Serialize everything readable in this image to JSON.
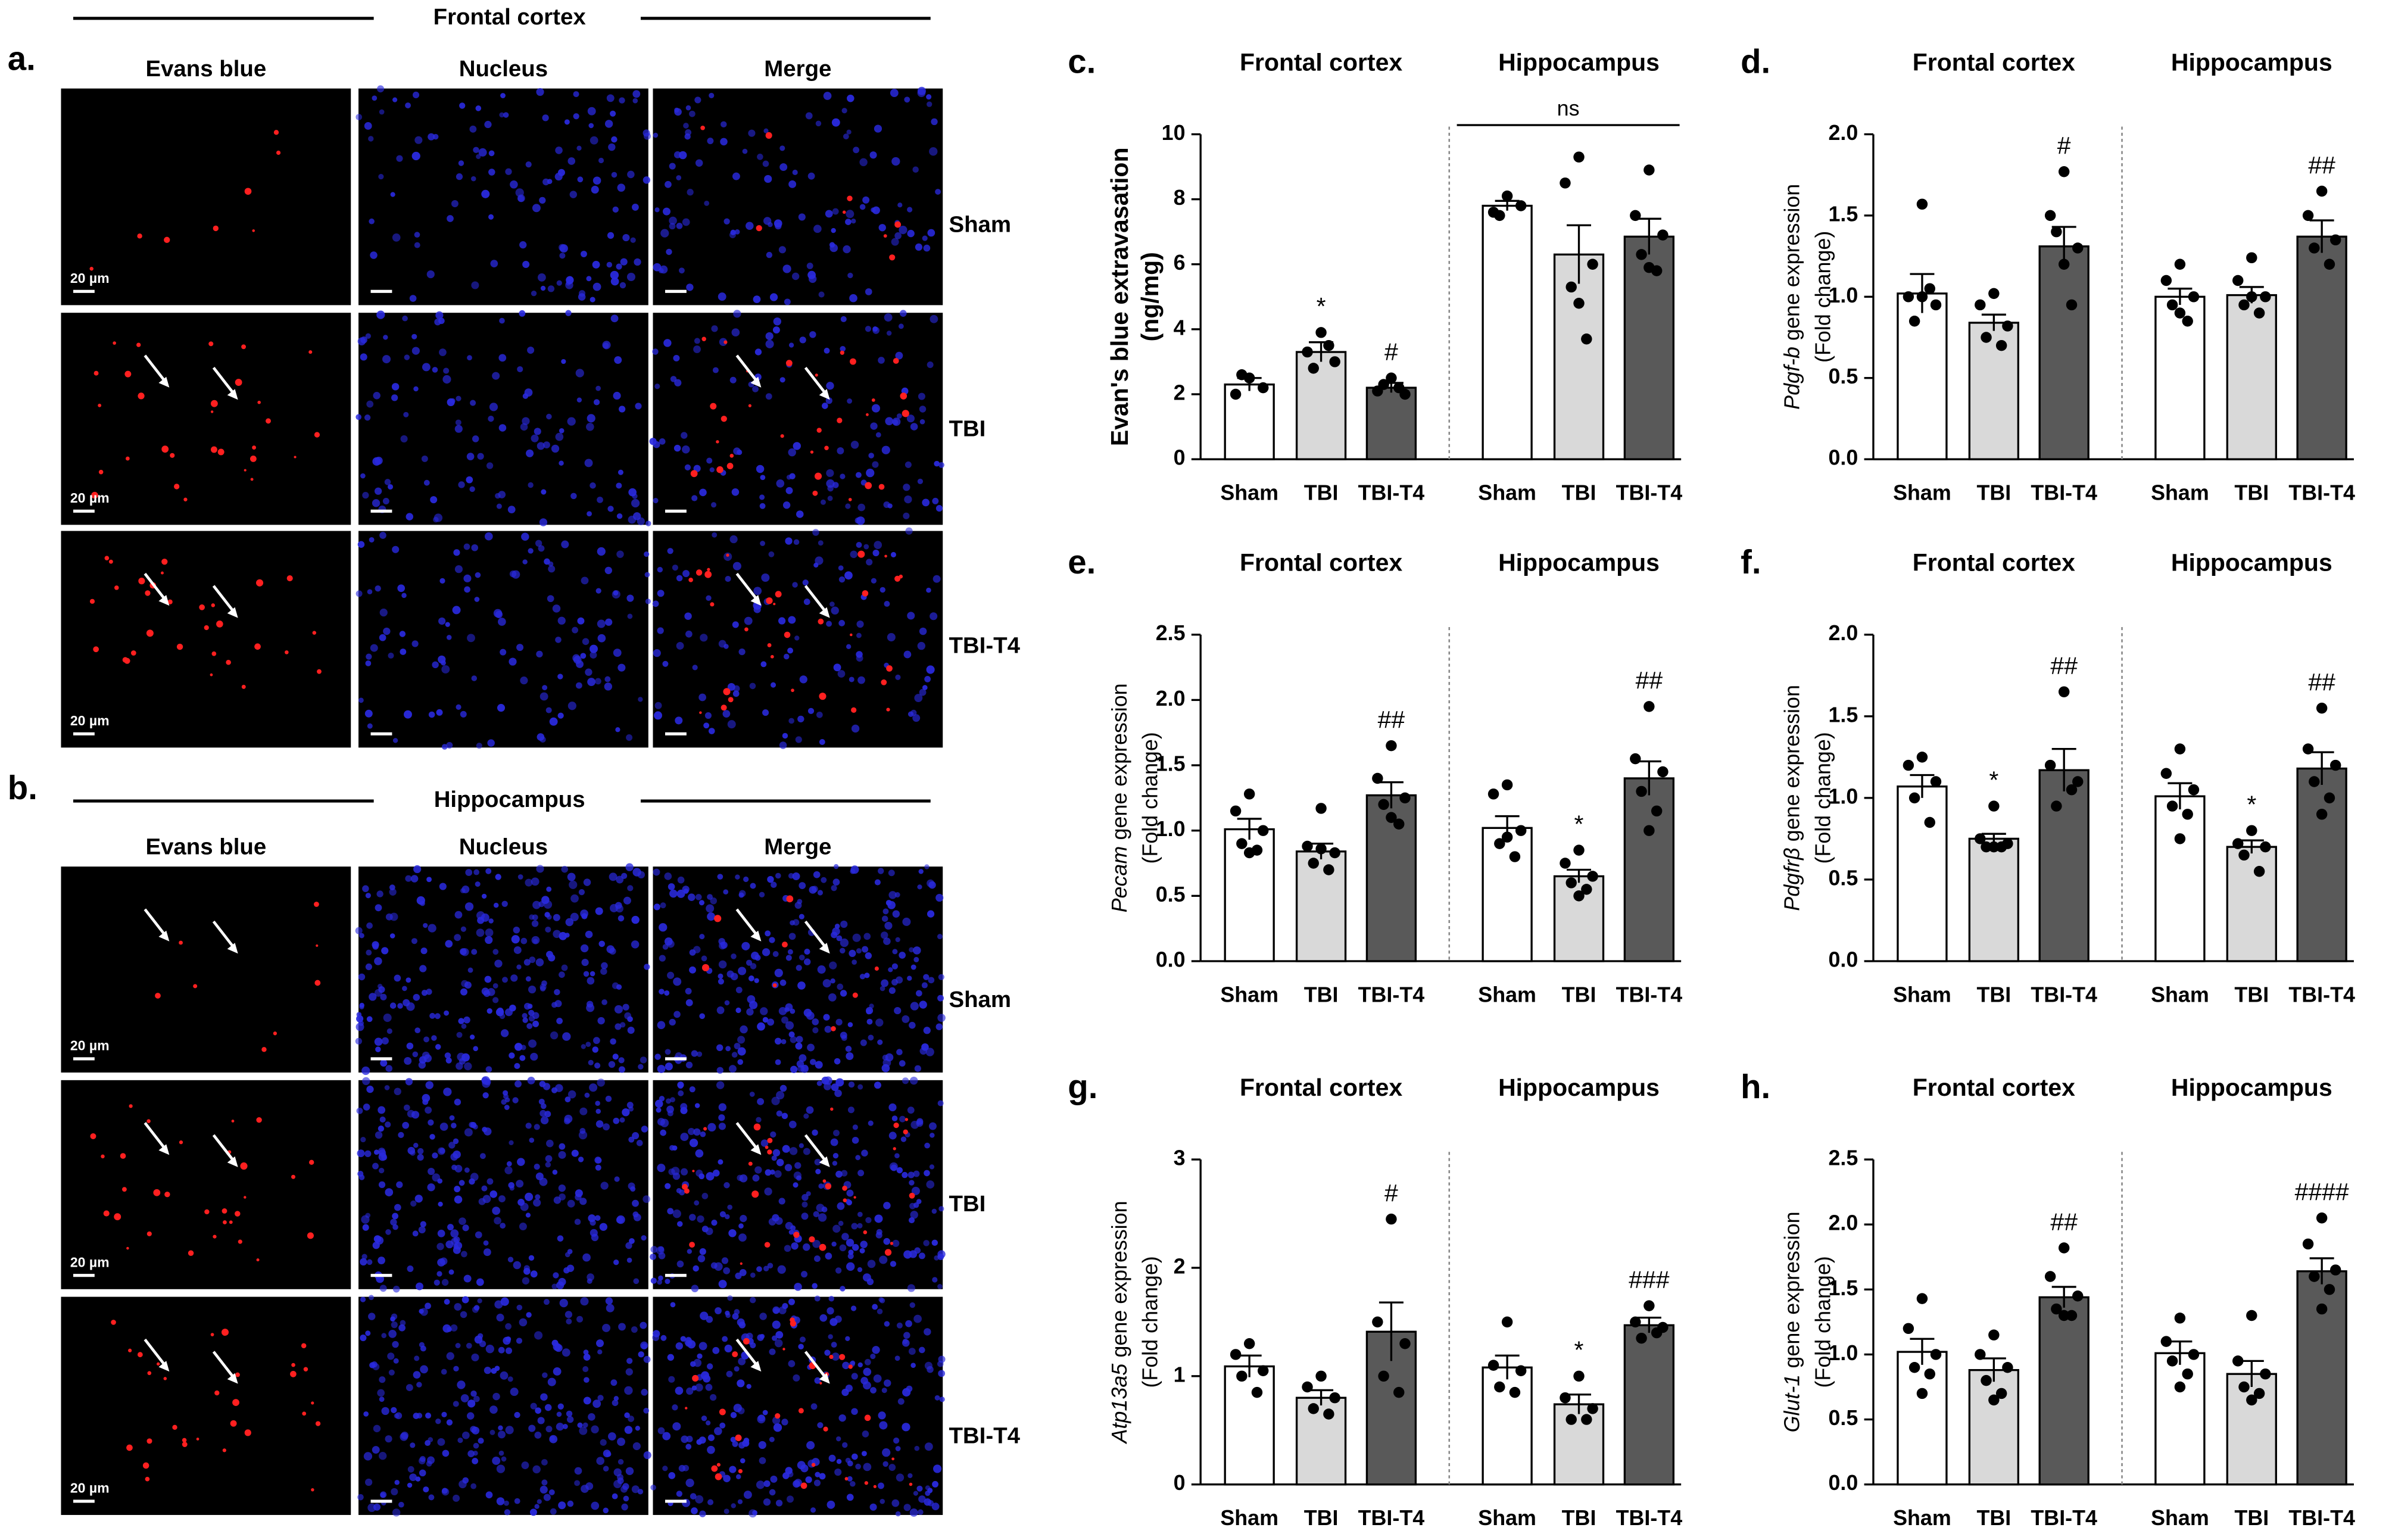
{
  "micrographs": [
    {
      "label": "a.",
      "region": "Frontal cortex",
      "columns": [
        "Evans blue",
        "Nucleus",
        "Merge"
      ],
      "rows": [
        "Sham",
        "TBI",
        "TBI-T4"
      ],
      "scale_bar": "20 µm"
    },
    {
      "label": "b.",
      "region": "Hippocampus",
      "columns": [
        "Evans blue",
        "Nucleus",
        "Merge"
      ],
      "rows": [
        "Sham",
        "TBI",
        "TBI-T4"
      ],
      "scale_bar": "20 µm"
    }
  ],
  "chart_data": [
    {
      "type": "bar",
      "panel_label": "c.",
      "ylabel": "Evan's blue extravasation",
      "ylabel_unit": "(ng/mg)",
      "ylabel_bold": true,
      "groups": [
        "Frontal cortex",
        "Hippocampus"
      ],
      "group_notes": [
        null,
        "ns"
      ],
      "categories": [
        "Sham",
        "TBI",
        "TBI-T4",
        "Sham",
        "TBI",
        "TBI-T4"
      ],
      "values": [
        2.3,
        3.3,
        2.2,
        7.8,
        6.3,
        6.85
      ],
      "errors": [
        0.2,
        0.3,
        0.15,
        0.15,
        0.9,
        0.55
      ],
      "points": [
        [
          2.5,
          2.0,
          2.2,
          2.6
        ],
        [
          3.9,
          3.3,
          3.0,
          2.8,
          3.5
        ],
        [
          2.5,
          2.1,
          2.0,
          2.3,
          2.2
        ],
        [
          8.1,
          7.6,
          7.8,
          7.5
        ],
        [
          9.3,
          8.5,
          6.0,
          5.3,
          3.7,
          4.8
        ],
        [
          8.9,
          7.5,
          6.9,
          6.3,
          5.8,
          5.9
        ]
      ],
      "annotations": [
        null,
        "*",
        "#",
        null,
        null,
        null
      ],
      "colors": [
        "#ffffff",
        "#d9d9d9",
        "#595959"
      ],
      "ylim": [
        0,
        10
      ],
      "yticks": [
        0,
        2,
        4,
        6,
        8,
        10
      ]
    },
    {
      "type": "bar",
      "panel_label": "d.",
      "ylabel_italic": "Pdgf-b",
      "ylabel": "gene expression",
      "ylabel_unit": "(Fold change)",
      "groups": [
        "Frontal cortex",
        "Hippocampus"
      ],
      "categories": [
        "Sham",
        "TBI",
        "TBI-T4",
        "Sham",
        "TBI",
        "TBI-T4"
      ],
      "values": [
        1.02,
        0.84,
        1.31,
        1.0,
        1.01,
        1.37
      ],
      "errors": [
        0.12,
        0.05,
        0.12,
        0.05,
        0.05,
        0.1
      ],
      "points": [
        [
          1.57,
          1.0,
          0.95,
          0.85,
          1.05,
          1.0
        ],
        [
          1.02,
          0.95,
          0.82,
          0.75,
          0.7
        ],
        [
          1.77,
          1.5,
          1.3,
          1.4,
          0.95,
          1.2
        ],
        [
          1.2,
          1.1,
          1.0,
          0.95,
          0.85,
          0.9
        ],
        [
          1.24,
          1.1,
          1.0,
          0.95,
          0.9,
          1.0
        ],
        [
          1.65,
          1.5,
          1.35,
          1.3,
          1.2
        ]
      ],
      "annotations": [
        null,
        null,
        "#",
        null,
        null,
        "##"
      ],
      "colors": [
        "#ffffff",
        "#d9d9d9",
        "#595959"
      ],
      "ylim": [
        0,
        2
      ],
      "yticks": [
        {
          "value": 0,
          "label": "0.0"
        },
        {
          "value": 0.5,
          "label": "0.5"
        },
        {
          "value": 1,
          "label": "1.0"
        },
        {
          "value": 1.5,
          "label": "1.5"
        },
        {
          "value": 2,
          "label": "2.0"
        }
      ]
    },
    {
      "type": "bar",
      "panel_label": "e.",
      "ylabel_italic": "Pecam",
      "ylabel": "gene expression",
      "ylabel_unit": "(Fold change)",
      "groups": [
        "Frontal cortex",
        "Hippocampus"
      ],
      "categories": [
        "Sham",
        "TBI",
        "TBI-T4",
        "Sham",
        "TBI",
        "TBI-T4"
      ],
      "values": [
        1.01,
        0.84,
        1.27,
        1.02,
        0.65,
        1.4
      ],
      "errors": [
        0.08,
        0.06,
        0.1,
        0.09,
        0.05,
        0.13
      ],
      "points": [
        [
          1.28,
          1.15,
          1.0,
          0.9,
          0.85,
          0.83
        ],
        [
          1.17,
          0.88,
          0.83,
          0.75,
          0.7,
          0.86
        ],
        [
          1.65,
          1.4,
          1.25,
          1.2,
          1.05,
          1.1
        ],
        [
          1.35,
          1.28,
          1.0,
          0.9,
          0.8,
          0.95
        ],
        [
          0.85,
          0.75,
          0.65,
          0.6,
          0.55,
          0.5
        ],
        [
          1.95,
          1.55,
          1.45,
          1.3,
          1.15,
          1.0
        ]
      ],
      "annotations": [
        null,
        null,
        "##",
        null,
        "*",
        "##"
      ],
      "colors": [
        "#ffffff",
        "#d9d9d9",
        "#595959"
      ],
      "ylim": [
        0,
        2.5
      ],
      "yticks": [
        {
          "value": 0,
          "label": "0.0"
        },
        {
          "value": 0.5,
          "label": "0.5"
        },
        {
          "value": 1,
          "label": "1.0"
        },
        {
          "value": 1.5,
          "label": "1.5"
        },
        {
          "value": 2,
          "label": "2.0"
        },
        2.5
      ]
    },
    {
      "type": "bar",
      "panel_label": "f.",
      "ylabel_italic": "Pdgfrβ",
      "ylabel": "gene expression",
      "ylabel_unit": "(Fold change)",
      "groups": [
        "Frontal cortex",
        "Hippocampus"
      ],
      "categories": [
        "Sham",
        "TBI",
        "TBI-T4",
        "Sham",
        "TBI",
        "TBI-T4"
      ],
      "values": [
        1.07,
        0.75,
        1.17,
        1.01,
        0.7,
        1.18
      ],
      "errors": [
        0.07,
        0.03,
        0.13,
        0.08,
        0.04,
        0.1
      ],
      "points": [
        [
          1.25,
          1.2,
          1.1,
          1.0,
          0.85
        ],
        [
          0.95,
          0.75,
          0.72,
          0.7,
          0.7,
          0.7
        ],
        [
          1.65,
          1.2,
          1.1,
          0.95,
          1.05
        ],
        [
          1.3,
          1.15,
          1.05,
          0.95,
          0.9,
          0.75
        ],
        [
          0.8,
          0.72,
          0.7,
          0.65,
          0.55
        ],
        [
          1.55,
          1.3,
          1.2,
          1.1,
          1.0,
          0.9
        ]
      ],
      "annotations": [
        null,
        "*",
        "##",
        null,
        "*",
        "##"
      ],
      "colors": [
        "#ffffff",
        "#d9d9d9",
        "#595959"
      ],
      "ylim": [
        0,
        2
      ],
      "yticks": [
        {
          "value": 0,
          "label": "0.0"
        },
        {
          "value": 0.5,
          "label": "0.5"
        },
        {
          "value": 1,
          "label": "1.0"
        },
        {
          "value": 1.5,
          "label": "1.5"
        },
        {
          "value": 2,
          "label": "2.0"
        }
      ]
    },
    {
      "type": "bar",
      "panel_label": "g.",
      "ylabel_italic": "Atp13a5",
      "ylabel": "gene expression",
      "ylabel_unit": "(Fold change)",
      "groups": [
        "Frontal cortex",
        "Hippocampus"
      ],
      "categories": [
        "Sham",
        "TBI",
        "TBI-T4",
        "Sham",
        "TBI",
        "TBI-T4"
      ],
      "values": [
        1.09,
        0.8,
        1.41,
        1.08,
        0.74,
        1.47
      ],
      "errors": [
        0.1,
        0.07,
        0.27,
        0.11,
        0.09,
        0.07
      ],
      "points": [
        [
          1.3,
          1.2,
          1.05,
          1.0,
          0.85
        ],
        [
          1.0,
          0.9,
          0.8,
          0.7,
          0.65
        ],
        [
          2.45,
          1.5,
          1.3,
          1.0,
          0.85
        ],
        [
          1.5,
          1.1,
          1.05,
          0.9,
          0.85
        ],
        [
          1.0,
          0.8,
          0.7,
          0.6,
          0.6
        ],
        [
          1.65,
          1.5,
          1.45,
          1.35,
          1.4
        ]
      ],
      "annotations": [
        null,
        null,
        "#",
        null,
        "*",
        "###"
      ],
      "colors": [
        "#ffffff",
        "#d9d9d9",
        "#595959"
      ],
      "ylim": [
        0,
        3
      ],
      "yticks": [
        0,
        1,
        2,
        3
      ]
    },
    {
      "type": "bar",
      "panel_label": "h.",
      "ylabel_italic": "Glut-1",
      "ylabel": "gene expression",
      "ylabel_unit": "(Fold change)",
      "groups": [
        "Frontal cortex",
        "Hippocampus"
      ],
      "categories": [
        "Sham",
        "TBI",
        "TBI-T4",
        "Sham",
        "TBI",
        "TBI-T4"
      ],
      "values": [
        1.02,
        0.88,
        1.44,
        1.01,
        0.85,
        1.64
      ],
      "errors": [
        0.1,
        0.09,
        0.08,
        0.09,
        0.1,
        0.1
      ],
      "points": [
        [
          1.43,
          1.2,
          1.0,
          0.9,
          0.85,
          0.7
        ],
        [
          1.15,
          1.0,
          0.9,
          0.8,
          0.7,
          0.65
        ],
        [
          1.82,
          1.6,
          1.45,
          1.35,
          1.3,
          1.3
        ],
        [
          1.28,
          1.1,
          1.0,
          0.95,
          0.85,
          0.75
        ],
        [
          1.3,
          0.95,
          0.85,
          0.75,
          0.7,
          0.65
        ],
        [
          2.05,
          1.85,
          1.65,
          1.6,
          1.5,
          1.35
        ]
      ],
      "annotations": [
        null,
        null,
        "##",
        null,
        null,
        "####"
      ],
      "colors": [
        "#ffffff",
        "#d9d9d9",
        "#595959"
      ],
      "ylim": [
        0,
        2.5
      ],
      "yticks": [
        {
          "value": 0,
          "label": "0.0"
        },
        {
          "value": 0.5,
          "label": "0.5"
        },
        {
          "value": 1,
          "label": "1.0"
        },
        {
          "value": 1.5,
          "label": "1.5"
        },
        {
          "value": 2,
          "label": "2.0"
        },
        2.5
      ]
    }
  ]
}
